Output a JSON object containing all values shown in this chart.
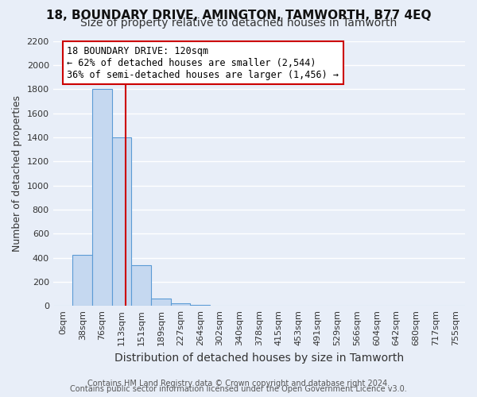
{
  "title1": "18, BOUNDARY DRIVE, AMINGTON, TAMWORTH, B77 4EQ",
  "title2": "Size of property relative to detached houses in Tamworth",
  "xlabel": "Distribution of detached houses by size in Tamworth",
  "ylabel": "Number of detached properties",
  "bin_labels": [
    "0sqm",
    "38sqm",
    "76sqm",
    "113sqm",
    "151sqm",
    "189sqm",
    "227sqm",
    "264sqm",
    "302sqm",
    "340sqm",
    "378sqm",
    "415sqm",
    "453sqm",
    "491sqm",
    "529sqm",
    "566sqm",
    "604sqm",
    "642sqm",
    "680sqm",
    "717sqm",
    "755sqm"
  ],
  "bar_values": [
    0,
    420,
    1800,
    1400,
    340,
    60,
    20,
    5,
    0,
    0,
    0,
    0,
    0,
    0,
    0,
    0,
    0,
    0,
    0,
    0,
    0
  ],
  "bar_color": "#c5d8f0",
  "bar_edge_color": "#5b9bd5",
  "property_line_color": "#cc0000",
  "annotation_line1": "18 BOUNDARY DRIVE: 120sqm",
  "annotation_line2": "← 62% of detached houses are smaller (2,544)",
  "annotation_line3": "36% of semi-detached houses are larger (1,456) →",
  "annotation_box_color": "#cc0000",
  "ylim": [
    0,
    2200
  ],
  "yticks": [
    0,
    200,
    400,
    600,
    800,
    1000,
    1200,
    1400,
    1600,
    1800,
    2000,
    2200
  ],
  "footer1": "Contains HM Land Registry data © Crown copyright and database right 2024.",
  "footer2": "Contains public sector information licensed under the Open Government Licence v3.0.",
  "bg_color": "#e8eef8",
  "plot_bg_color": "#e8eef8",
  "grid_color": "#ffffff",
  "title_fontsize": 11,
  "subtitle_fontsize": 10,
  "tick_fontsize": 8,
  "ylabel_fontsize": 9,
  "xlabel_fontsize": 10,
  "footer_fontsize": 7,
  "annot_fontsize": 8.5
}
